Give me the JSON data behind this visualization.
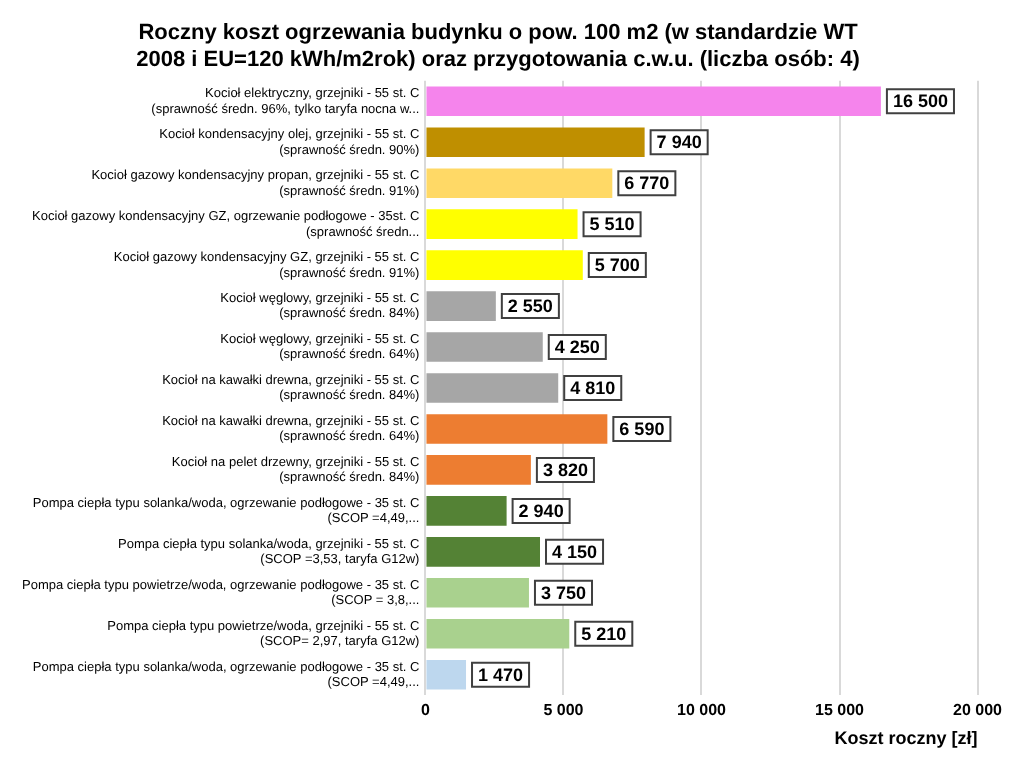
{
  "chart_data": {
    "type": "bar",
    "orientation": "horizontal",
    "title": "Roczny koszt ogrzewania budynku o pow. 100 m2 (w standardzie WT 2008 i EU=120 kWh/m2rok) oraz przygotowania c.w.u. (liczba osób: 4)",
    "categories": [
      "Kocioł elektryczny, grzejniki - 55 st. C (sprawność średn. 96%, tylko taryfa nocna w...",
      "Kocioł kondensacyjny olej, grzejniki - 55 st. C (sprawność średn. 90%)",
      "Kocioł gazowy kondensacyjny propan, grzejniki - 55 st. C (sprawność średn. 91%)",
      "Kocioł gazowy kondensacyjny GZ, ogrzewanie podłogowe - 35st. C (sprawność średn...",
      "Kocioł gazowy kondensacyjny GZ, grzejniki - 55 st. C (sprawność średn. 91%)",
      "Kocioł węglowy, grzejniki - 55 st. C (sprawność średn. 84%)",
      "Kocioł węglowy, grzejniki - 55 st. C (sprawność średn. 64%)",
      "Kocioł na kawałki drewna, grzejniki - 55 st. C (sprawność średn. 84%)",
      "Kocioł na kawałki drewna, grzejniki - 55 st. C (sprawność średn. 64%)",
      "Kocioł na pelet drzewny, grzejniki - 55 st. C (sprawność średn. 84%)",
      "Pompa ciepła typu solanka/woda, ogrzewanie podłogowe - 35 st. C (SCOP =4,49,...",
      "Pompa ciepła typu solanka/woda, grzejniki - 55 st. C (SCOP =3,53, taryfa G12w)",
      "Pompa ciepła typu powietrze/woda, ogrzewanie podłogowe - 35 st. C (SCOP = 3,8,...",
      "Pompa ciepła typu powietrze/woda, grzejniki - 55 st. C (SCOP= 2,97, taryfa G12w)",
      "Pompa ciepła typu solanka/woda, ogrzewanie podłogowe - 35 st. C (SCOP =4,49,..."
    ],
    "values": [
      16500,
      7940,
      6770,
      5510,
      5700,
      2550,
      4250,
      4810,
      6590,
      3820,
      2940,
      4150,
      3750,
      5210,
      1470
    ],
    "colors": [
      "#f584ec",
      "#bf8f00",
      "#ffd966",
      "#ffff00",
      "#ffff00",
      "#a6a6a6",
      "#a6a6a6",
      "#a6a6a6",
      "#ed7d31",
      "#ed7d31",
      "#548235",
      "#548235",
      "#a9d18e",
      "#a9d18e",
      "#bdd7ee"
    ],
    "xlim": [
      0,
      20000
    ],
    "xticks": [
      0,
      5000,
      10000,
      15000,
      20000
    ],
    "xlabel": "Koszt roczny [zł]",
    "grid": "x",
    "data_labels": true
  }
}
